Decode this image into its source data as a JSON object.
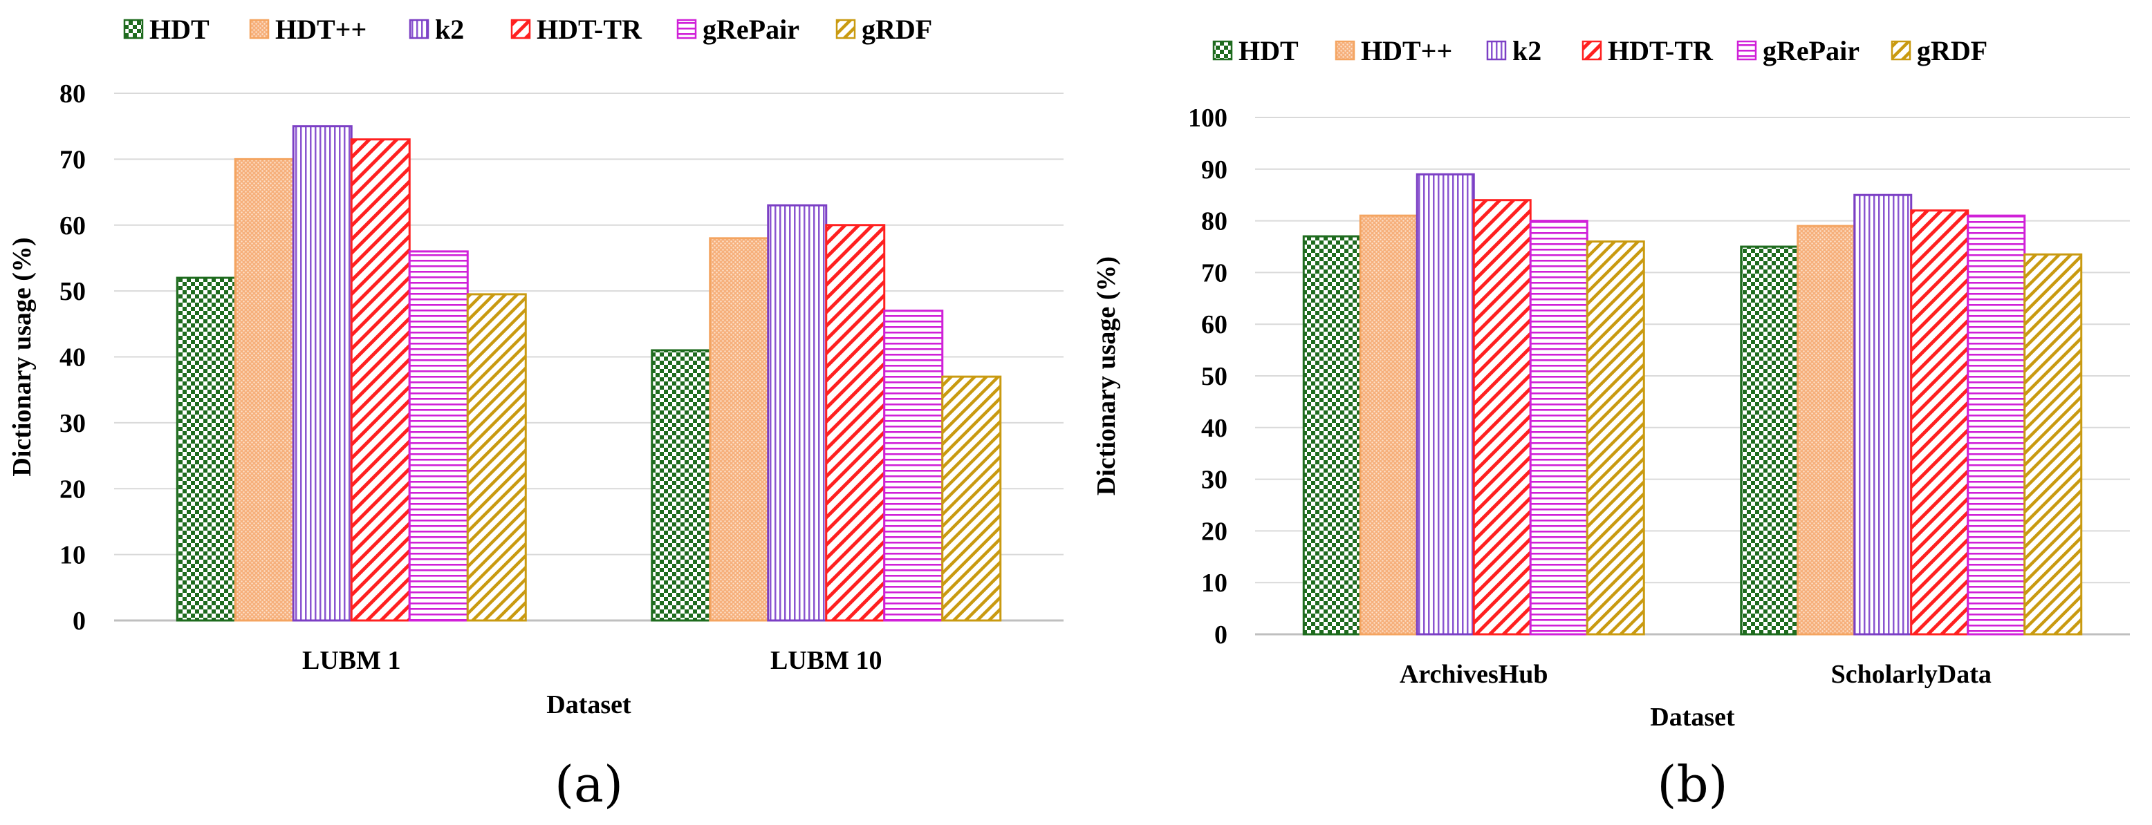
{
  "colors": {
    "HDT": "#1e6b1e",
    "HDT++": "#f4a460",
    "k2": "#7b3fc4",
    "HDT-TR": "#ff2020",
    "gRePair": "#d020d8",
    "gRDF": "#c99a10",
    "grid": "#d9d9d9",
    "axis": "#bfbfbf"
  },
  "chart_data": [
    {
      "type": "bar",
      "panel_label": "(a)",
      "title": "",
      "xlabel": "Dataset",
      "ylabel": "Dictionary usage  (%)",
      "ylim": [
        0,
        80
      ],
      "yticks": [
        0,
        10,
        20,
        30,
        40,
        50,
        60,
        70,
        80
      ],
      "grid": true,
      "legend_position": "top",
      "categories": [
        "LUBM 1",
        "LUBM 10"
      ],
      "series": [
        {
          "name": "HDT",
          "values": [
            52,
            41
          ]
        },
        {
          "name": "HDT++",
          "values": [
            70,
            58
          ]
        },
        {
          "name": "k2",
          "values": [
            75,
            63
          ]
        },
        {
          "name": "HDT-TR",
          "values": [
            73,
            60
          ]
        },
        {
          "name": "gRePair",
          "values": [
            56,
            47
          ]
        },
        {
          "name": "gRDF",
          "values": [
            49.5,
            37
          ]
        }
      ]
    },
    {
      "type": "bar",
      "panel_label": "(b)",
      "title": "",
      "xlabel": "Dataset",
      "ylabel": "Dictionary usage  (%)",
      "ylim": [
        0,
        100
      ],
      "yticks": [
        0,
        10,
        20,
        30,
        40,
        50,
        60,
        70,
        80,
        90,
        100
      ],
      "grid": true,
      "legend_position": "top",
      "categories": [
        "ArchivesHub",
        "ScholarlyData"
      ],
      "series": [
        {
          "name": "HDT",
          "values": [
            77,
            75
          ]
        },
        {
          "name": "HDT++",
          "values": [
            81,
            79
          ]
        },
        {
          "name": "k2",
          "values": [
            89,
            85
          ]
        },
        {
          "name": "HDT-TR",
          "values": [
            84,
            82
          ]
        },
        {
          "name": "gRePair",
          "values": [
            80,
            81
          ]
        },
        {
          "name": "gRDF",
          "values": [
            76,
            73.5
          ]
        }
      ]
    }
  ]
}
